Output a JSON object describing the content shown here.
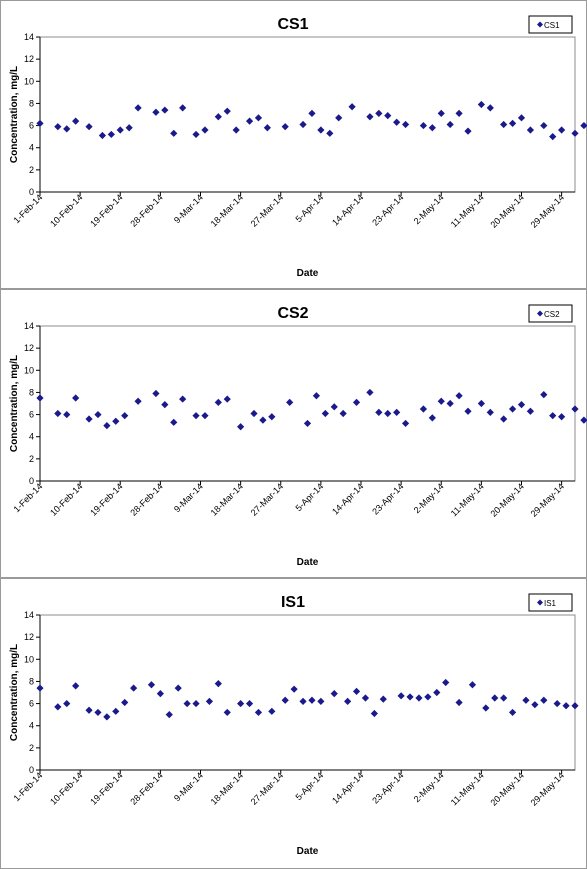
{
  "chart_data": [
    {
      "type": "scatter",
      "title": "CS1",
      "xlabel": "Date",
      "ylabel": "Concentration, mg/L",
      "ylim": [
        0,
        14
      ],
      "yticks": [
        "0",
        "2",
        "4",
        "6",
        "8",
        "10",
        "12",
        "14"
      ],
      "xlim": [
        "2014-02-01",
        "2014-06-01"
      ],
      "xticks": [
        "1-Feb-14",
        "10-Feb-14",
        "19-Feb-14",
        "28-Feb-14",
        "9-Mar-14",
        "18-Mar-14",
        "27-Mar-14",
        "5-Apr-14",
        "14-Apr-14",
        "23-Apr-14",
        "2-May-14",
        "11-May-14",
        "20-May-14",
        "29-May-14"
      ],
      "grid": false,
      "legend_position": "top-right",
      "colors": {
        "marker": "#1a1a8c"
      },
      "series": [
        {
          "name": "CS1",
          "points": [
            [
              "2014-02-01",
              6.2
            ],
            [
              "2014-02-05",
              5.9
            ],
            [
              "2014-02-07",
              5.7
            ],
            [
              "2014-02-09",
              6.4
            ],
            [
              "2014-02-12",
              5.9
            ],
            [
              "2014-02-15",
              5.1
            ],
            [
              "2014-02-17",
              5.2
            ],
            [
              "2014-02-19",
              5.6
            ],
            [
              "2014-02-21",
              5.8
            ],
            [
              "2014-02-23",
              7.6
            ],
            [
              "2014-02-27",
              7.2
            ],
            [
              "2014-03-01",
              7.4
            ],
            [
              "2014-03-03",
              5.3
            ],
            [
              "2014-03-05",
              7.6
            ],
            [
              "2014-03-08",
              5.2
            ],
            [
              "2014-03-10",
              5.6
            ],
            [
              "2014-03-13",
              6.8
            ],
            [
              "2014-03-15",
              7.3
            ],
            [
              "2014-03-17",
              5.6
            ],
            [
              "2014-03-20",
              6.4
            ],
            [
              "2014-03-22",
              6.7
            ],
            [
              "2014-03-24",
              5.8
            ],
            [
              "2014-03-28",
              5.9
            ],
            [
              "2014-04-01",
              6.1
            ],
            [
              "2014-04-03",
              7.1
            ],
            [
              "2014-04-05",
              5.6
            ],
            [
              "2014-04-07",
              5.3
            ],
            [
              "2014-04-09",
              6.7
            ],
            [
              "2014-04-12",
              7.7
            ],
            [
              "2014-04-16",
              6.8
            ],
            [
              "2014-04-18",
              7.1
            ],
            [
              "2014-04-20",
              6.9
            ],
            [
              "2014-04-22",
              6.3
            ],
            [
              "2014-04-24",
              6.1
            ],
            [
              "2014-04-28",
              6.0
            ],
            [
              "2014-04-30",
              5.8
            ],
            [
              "2014-05-02",
              7.1
            ],
            [
              "2014-05-04",
              6.1
            ],
            [
              "2014-05-06",
              7.1
            ],
            [
              "2014-05-08",
              5.5
            ],
            [
              "2014-05-11",
              7.9
            ],
            [
              "2014-05-13",
              7.6
            ],
            [
              "2014-05-16",
              6.1
            ],
            [
              "2014-05-18",
              6.2
            ],
            [
              "2014-05-20",
              6.7
            ],
            [
              "2014-05-22",
              5.6
            ],
            [
              "2014-05-25",
              6.0
            ],
            [
              "2014-05-27",
              5.0
            ],
            [
              "2014-05-29",
              5.6
            ],
            [
              "2014-06-01",
              5.3
            ],
            [
              "2014-06-03",
              6.0
            ],
            [
              "2014-06-05",
              5.5
            ]
          ]
        }
      ]
    },
    {
      "type": "scatter",
      "title": "CS2",
      "xlabel": "Date",
      "ylabel": "Concentration, mg/L",
      "ylim": [
        0,
        14
      ],
      "yticks": [
        "0",
        "2",
        "4",
        "6",
        "8",
        "10",
        "12",
        "14"
      ],
      "xlim": [
        "2014-02-01",
        "2014-06-01"
      ],
      "xticks": [
        "1-Feb-14",
        "10-Feb-14",
        "19-Feb-14",
        "28-Feb-14",
        "9-Mar-14",
        "18-Mar-14",
        "27-Mar-14",
        "5-Apr-14",
        "14-Apr-14",
        "23-Apr-14",
        "2-May-14",
        "11-May-14",
        "20-May-14",
        "29-May-14"
      ],
      "grid": false,
      "legend_position": "top-right",
      "colors": {
        "marker": "#1a1a8c"
      },
      "series": [
        {
          "name": "CS2",
          "points": [
            [
              "2014-02-01",
              7.5
            ],
            [
              "2014-02-05",
              6.1
            ],
            [
              "2014-02-07",
              6.0
            ],
            [
              "2014-02-09",
              7.5
            ],
            [
              "2014-02-12",
              5.6
            ],
            [
              "2014-02-14",
              6.0
            ],
            [
              "2014-02-16",
              5.0
            ],
            [
              "2014-02-18",
              5.4
            ],
            [
              "2014-02-20",
              5.9
            ],
            [
              "2014-02-23",
              7.2
            ],
            [
              "2014-02-27",
              7.9
            ],
            [
              "2014-03-01",
              6.9
            ],
            [
              "2014-03-03",
              5.3
            ],
            [
              "2014-03-05",
              7.4
            ],
            [
              "2014-03-08",
              5.9
            ],
            [
              "2014-03-10",
              5.9
            ],
            [
              "2014-03-13",
              7.1
            ],
            [
              "2014-03-15",
              7.4
            ],
            [
              "2014-03-18",
              4.9
            ],
            [
              "2014-03-21",
              6.1
            ],
            [
              "2014-03-23",
              5.5
            ],
            [
              "2014-03-25",
              5.8
            ],
            [
              "2014-03-29",
              7.1
            ],
            [
              "2014-04-02",
              5.2
            ],
            [
              "2014-04-04",
              7.7
            ],
            [
              "2014-04-06",
              6.1
            ],
            [
              "2014-04-08",
              6.7
            ],
            [
              "2014-04-10",
              6.1
            ],
            [
              "2014-04-13",
              7.1
            ],
            [
              "2014-04-16",
              8.0
            ],
            [
              "2014-04-18",
              6.2
            ],
            [
              "2014-04-20",
              6.1
            ],
            [
              "2014-04-22",
              6.2
            ],
            [
              "2014-04-24",
              5.2
            ],
            [
              "2014-04-28",
              6.5
            ],
            [
              "2014-04-30",
              5.7
            ],
            [
              "2014-05-02",
              7.2
            ],
            [
              "2014-05-04",
              7.0
            ],
            [
              "2014-05-06",
              7.7
            ],
            [
              "2014-05-08",
              6.3
            ],
            [
              "2014-05-11",
              7.0
            ],
            [
              "2014-05-13",
              6.2
            ],
            [
              "2014-05-16",
              5.6
            ],
            [
              "2014-05-18",
              6.5
            ],
            [
              "2014-05-20",
              6.9
            ],
            [
              "2014-05-22",
              6.3
            ],
            [
              "2014-05-25",
              7.8
            ],
            [
              "2014-05-27",
              5.9
            ],
            [
              "2014-05-29",
              5.8
            ],
            [
              "2014-06-01",
              6.5
            ],
            [
              "2014-06-03",
              5.5
            ],
            [
              "2014-06-05",
              6.1
            ]
          ]
        }
      ]
    },
    {
      "type": "scatter",
      "title": "IS1",
      "xlabel": "Date",
      "ylabel": "Concentration, mg/L",
      "ylim": [
        0,
        14
      ],
      "yticks": [
        "0",
        "2",
        "4",
        "6",
        "8",
        "10",
        "12",
        "14"
      ],
      "xlim": [
        "2014-02-01",
        "2014-06-01"
      ],
      "xticks": [
        "1-Feb-14",
        "10-Feb-14",
        "19-Feb-14",
        "28-Feb-14",
        "9-Mar-14",
        "18-Mar-14",
        "27-Mar-14",
        "5-Apr-14",
        "14-Apr-14",
        "23-Apr-14",
        "2-May-14",
        "11-May-14",
        "20-May-14",
        "29-May-14"
      ],
      "grid": false,
      "legend_position": "top-right",
      "colors": {
        "marker": "#1a1a8c"
      },
      "series": [
        {
          "name": "IS1",
          "points": [
            [
              "2014-02-01",
              7.4
            ],
            [
              "2014-02-05",
              5.7
            ],
            [
              "2014-02-07",
              6.0
            ],
            [
              "2014-02-09",
              7.6
            ],
            [
              "2014-02-12",
              5.4
            ],
            [
              "2014-02-14",
              5.2
            ],
            [
              "2014-02-16",
              4.8
            ],
            [
              "2014-02-18",
              5.3
            ],
            [
              "2014-02-20",
              6.1
            ],
            [
              "2014-02-22",
              7.4
            ],
            [
              "2014-02-26",
              7.7
            ],
            [
              "2014-02-28",
              6.9
            ],
            [
              "2014-03-02",
              5.0
            ],
            [
              "2014-03-04",
              7.4
            ],
            [
              "2014-03-06",
              6.0
            ],
            [
              "2014-03-08",
              6.0
            ],
            [
              "2014-03-11",
              6.2
            ],
            [
              "2014-03-13",
              7.8
            ],
            [
              "2014-03-15",
              5.2
            ],
            [
              "2014-03-18",
              6.0
            ],
            [
              "2014-03-20",
              6.0
            ],
            [
              "2014-03-22",
              5.2
            ],
            [
              "2014-03-25",
              5.3
            ],
            [
              "2014-03-28",
              6.3
            ],
            [
              "2014-03-30",
              7.3
            ],
            [
              "2014-04-01",
              6.2
            ],
            [
              "2014-04-03",
              6.3
            ],
            [
              "2014-04-05",
              6.2
            ],
            [
              "2014-04-08",
              6.9
            ],
            [
              "2014-04-11",
              6.2
            ],
            [
              "2014-04-13",
              7.1
            ],
            [
              "2014-04-15",
              6.5
            ],
            [
              "2014-04-17",
              5.1
            ],
            [
              "2014-04-19",
              6.4
            ],
            [
              "2014-04-23",
              6.7
            ],
            [
              "2014-04-25",
              6.6
            ],
            [
              "2014-04-27",
              6.5
            ],
            [
              "2014-04-29",
              6.6
            ],
            [
              "2014-05-01",
              7.0
            ],
            [
              "2014-05-03",
              7.9
            ],
            [
              "2014-05-06",
              6.1
            ],
            [
              "2014-05-09",
              7.7
            ],
            [
              "2014-05-12",
              5.6
            ],
            [
              "2014-05-14",
              6.5
            ],
            [
              "2014-05-16",
              6.5
            ],
            [
              "2014-05-18",
              5.2
            ],
            [
              "2014-05-21",
              6.3
            ],
            [
              "2014-05-23",
              5.9
            ],
            [
              "2014-05-25",
              6.3
            ],
            [
              "2014-05-28",
              6.0
            ],
            [
              "2014-05-30",
              5.8
            ],
            [
              "2014-06-01",
              5.8
            ]
          ]
        }
      ]
    }
  ]
}
